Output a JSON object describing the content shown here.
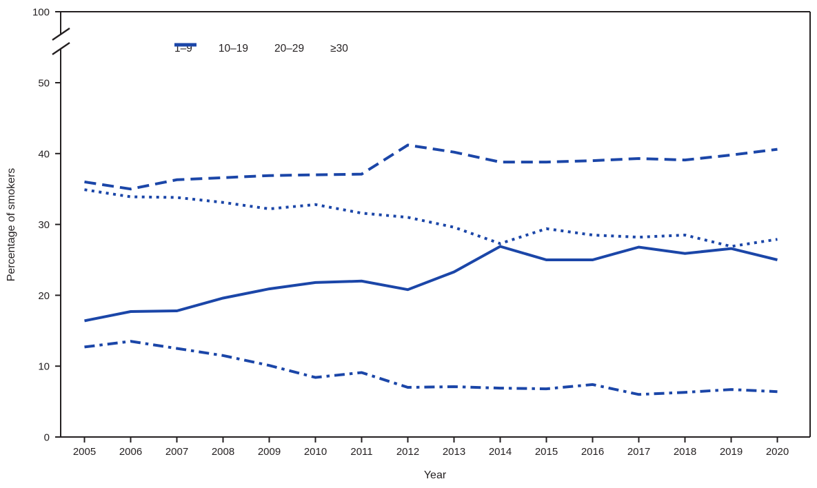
{
  "chart_data": {
    "type": "line",
    "title": "",
    "xlabel": "Year",
    "ylabel": "Percentage of smokers",
    "x": [
      2005,
      2006,
      2007,
      2008,
      2009,
      2010,
      2011,
      2012,
      2013,
      2014,
      2015,
      2016,
      2017,
      2018,
      2019,
      2020
    ],
    "series": [
      {
        "name": "1–9",
        "style": "solid",
        "values": [
          16.4,
          17.7,
          17.8,
          19.6,
          20.9,
          21.8,
          22.0,
          20.8,
          23.3,
          26.9,
          25.0,
          25.0,
          26.8,
          25.9,
          26.6,
          25.0
        ]
      },
      {
        "name": "10–19",
        "style": "dashed",
        "values": [
          36.0,
          35.0,
          36.3,
          36.6,
          36.9,
          37.0,
          37.1,
          41.2,
          40.2,
          38.8,
          38.8,
          39.0,
          39.3,
          39.1,
          39.8,
          40.6
        ]
      },
      {
        "name": "20–29",
        "style": "dotted",
        "values": [
          34.9,
          33.9,
          33.8,
          33.1,
          32.2,
          32.8,
          31.6,
          31.0,
          29.6,
          27.3,
          29.4,
          28.5,
          28.2,
          28.5,
          26.9,
          27.9
        ]
      },
      {
        "name": "≥30",
        "style": "dashdot",
        "values": [
          12.7,
          13.5,
          12.5,
          11.5,
          10.1,
          8.4,
          9.1,
          7.0,
          7.1,
          6.9,
          6.8,
          7.4,
          6.0,
          6.3,
          6.7,
          6.4
        ]
      }
    ],
    "ylim": [
      0,
      100
    ],
    "y_ticks": [
      0,
      10,
      20,
      30,
      40,
      50
    ],
    "y_top_tick": 100,
    "axis_break": true,
    "grid": false,
    "legend_position": "top-inside",
    "line_color": "#1b46a8",
    "axis_color": "#231f20"
  }
}
